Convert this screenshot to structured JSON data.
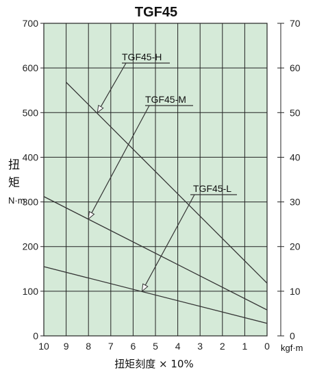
{
  "chart_data": {
    "type": "line",
    "title": "TGF45",
    "ylabel": "扭\n矩",
    "ylabel_unit": "N·m",
    "y2label_unit": "kgf·m",
    "xlabel": "扭矩刻度 × 10%",
    "x_ticks": [
      "10",
      "9",
      "8",
      "7",
      "6",
      "5",
      "4",
      "3",
      "2",
      "1",
      "0"
    ],
    "y_ticks": [
      "0",
      "100",
      "200",
      "300",
      "400",
      "500",
      "600",
      "700"
    ],
    "y2_ticks": [
      "0",
      "10",
      "20",
      "30",
      "40",
      "50",
      "60",
      "70"
    ],
    "xlim": [
      10,
      0
    ],
    "ylim": [
      0,
      700
    ],
    "y2lim": [
      0,
      70
    ],
    "grid": true,
    "series": [
      {
        "name": "TGF45-H",
        "x": [
          9.0,
          0
        ],
        "y": [
          568,
          118
        ],
        "label_point": [
          7.6,
          500
        ]
      },
      {
        "name": "TGF45-M",
        "x": [
          10,
          0
        ],
        "y": [
          312,
          58
        ],
        "label_point": [
          8.0,
          262
        ]
      },
      {
        "name": "TGF45-L",
        "x": [
          10,
          0
        ],
        "y": [
          155,
          28
        ],
        "label_point": [
          5.6,
          100
        ]
      }
    ],
    "colors": {
      "plot_bg": "#d5ead8",
      "line": "#333333",
      "grid": "#222222"
    }
  }
}
